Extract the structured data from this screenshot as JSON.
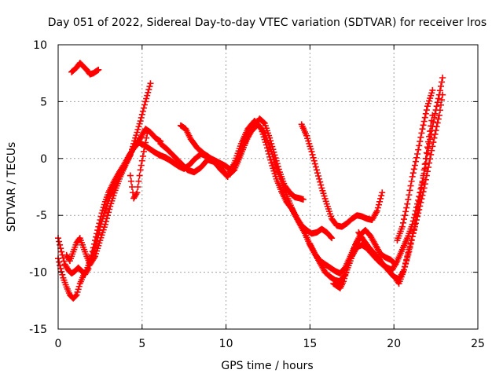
{
  "chart_data": {
    "type": "scatter",
    "title": "Day 051 of 2022, Sidereal Day-to-day VTEC variation (SDTVAR) for receiver lros",
    "xlabel": "GPS time / hours",
    "ylabel": "SDTVAR / TECUs",
    "xlim": [
      0,
      25
    ],
    "ylim": [
      -15,
      10
    ],
    "xticks": [
      0,
      5,
      10,
      15,
      20,
      25
    ],
    "yticks": [
      -15,
      -10,
      -5,
      0,
      5,
      10
    ],
    "x_tick_labels": [
      "0",
      "5",
      "10",
      "15",
      "20",
      "25"
    ],
    "y_tick_labels": [
      "-15",
      "-10",
      "-5",
      "0",
      "5",
      "10"
    ],
    "grid": true,
    "marker": "+",
    "color": "#ff0000",
    "series": [
      {
        "x": [
          0.8,
          1.1,
          1.3,
          1.5,
          1.7,
          1.9,
          2.1,
          2.3,
          2.4
        ],
        "y": [
          7.6,
          8.0,
          8.4,
          8.1,
          7.8,
          7.4,
          7.5,
          7.7,
          7.8
        ]
      },
      {
        "x": [
          0.0,
          0.1,
          0.3,
          0.5,
          0.7,
          0.9,
          1.1,
          1.3,
          1.5,
          1.7,
          1.9,
          2.1,
          2.3,
          2.5,
          2.8,
          3.1,
          3.4,
          3.7,
          4.0,
          4.3,
          4.6,
          4.9,
          5.2,
          5.5
        ],
        "y": [
          -8.8,
          -9.4,
          -10.5,
          -11.3,
          -12.0,
          -12.3,
          -12.0,
          -11.0,
          -10.3,
          -9.8,
          -9.0,
          -8.3,
          -7.3,
          -6.0,
          -4.6,
          -3.3,
          -2.3,
          -1.3,
          -0.6,
          0.3,
          1.8,
          3.3,
          5.0,
          6.6
        ]
      },
      {
        "x": [
          0.0,
          0.2,
          0.4,
          0.6,
          0.8,
          1.0,
          1.2,
          1.4,
          1.6,
          1.8,
          2.0,
          2.2,
          2.4,
          2.6,
          2.8,
          3.0,
          3.3,
          3.6,
          3.9,
          4.2,
          4.5,
          4.8,
          5.1,
          5.4,
          5.8,
          6.2,
          6.6,
          7.0,
          7.4
        ],
        "y": [
          -7.0,
          -8.2,
          -9.3,
          -9.8,
          -10.1,
          -9.9,
          -9.6,
          -9.9,
          -10.2,
          -9.7,
          -8.5,
          -7.2,
          -6.0,
          -4.8,
          -3.8,
          -3.0,
          -2.1,
          -1.3,
          -0.6,
          0.2,
          0.9,
          1.4,
          1.2,
          0.9,
          0.5,
          0.2,
          -0.1,
          -0.5,
          -0.8
        ]
      },
      {
        "x": [
          0.5,
          0.7,
          0.9,
          1.1,
          1.3,
          1.5,
          1.7,
          1.9,
          2.2,
          2.5,
          2.8,
          3.1,
          3.4,
          3.7,
          4.0,
          4.3,
          4.6,
          4.9,
          5.2,
          5.5,
          5.8,
          6.1
        ],
        "y": [
          -8.5,
          -9.0,
          -8.2,
          -7.4,
          -7.0,
          -7.8,
          -8.6,
          -9.3,
          -8.6,
          -7.2,
          -5.8,
          -4.2,
          -2.8,
          -1.6,
          -0.6,
          0.4,
          1.2,
          1.8,
          2.6,
          2.3,
          1.8,
          1.5
        ]
      },
      {
        "x": [
          4.3,
          4.5,
          4.7,
          4.9,
          5.1,
          5.3
        ],
        "y": [
          -1.5,
          -3.5,
          -3.0,
          -1.0,
          0.6,
          2.2
        ]
      },
      {
        "x": [
          6.0,
          6.4,
          6.8,
          7.2,
          7.5,
          7.8,
          8.1,
          8.5,
          8.9,
          9.3,
          9.7,
          10.1,
          10.5,
          10.9,
          11.3,
          11.7,
          12.0,
          12.3,
          12.6,
          12.9,
          13.2,
          13.5,
          13.8,
          14.1,
          14.4,
          14.6
        ],
        "y": [
          0.3,
          0.1,
          -0.3,
          -0.7,
          -0.9,
          -0.6,
          -0.1,
          0.4,
          0.2,
          -0.3,
          -0.9,
          -1.5,
          -1.0,
          0.4,
          1.9,
          2.9,
          3.5,
          3.1,
          1.8,
          0.3,
          -1.2,
          -2.4,
          -3.0,
          -3.4,
          -3.5,
          -3.6
        ]
      },
      {
        "x": [
          6.1,
          6.5,
          6.9,
          7.3,
          7.7,
          8.1,
          8.5,
          8.9,
          9.3,
          9.7,
          10.1,
          10.5,
          10.9,
          11.3,
          11.7,
          12.1,
          12.4,
          12.7,
          13.0,
          13.3,
          13.6,
          13.9,
          14.2,
          14.5,
          14.8,
          15.1,
          15.4,
          15.7,
          16.0,
          16.3
        ],
        "y": [
          1.3,
          0.8,
          0.2,
          -0.4,
          -1.0,
          -1.2,
          -0.8,
          -0.1,
          -0.3,
          -1.0,
          -1.6,
          -0.4,
          1.3,
          2.6,
          3.3,
          2.6,
          1.2,
          -0.4,
          -1.8,
          -2.9,
          -3.8,
          -4.4,
          -5.2,
          -5.9,
          -6.3,
          -6.6,
          -6.5,
          -6.2,
          -6.5,
          -7.0
        ]
      },
      {
        "x": [
          7.3,
          7.6,
          7.9,
          8.3,
          8.7,
          9.1,
          9.5,
          9.9,
          10.3,
          10.7,
          11.1,
          11.5,
          11.9,
          12.3,
          12.7,
          13.1,
          13.5,
          13.9,
          14.3,
          14.7,
          15.0,
          15.3,
          15.6,
          15.9,
          16.2,
          16.5,
          16.8,
          17.1,
          17.4,
          17.7,
          18.0
        ],
        "y": [
          2.9,
          2.6,
          1.7,
          0.9,
          0.4,
          0.0,
          -0.3,
          -0.6,
          -1.0,
          -0.1,
          1.3,
          2.4,
          3.0,
          2.2,
          0.6,
          -1.2,
          -2.8,
          -4.3,
          -5.5,
          -6.6,
          -7.6,
          -8.4,
          -9.0,
          -9.3,
          -9.6,
          -9.9,
          -10.1,
          -9.6,
          -8.6,
          -7.6,
          -6.9
        ]
      },
      {
        "x": [
          14.5,
          14.8,
          15.1,
          15.4,
          15.7,
          16.0,
          16.3,
          16.6,
          16.9,
          17.2,
          17.5,
          17.8,
          18.1,
          18.4,
          18.7,
          19.0,
          19.3
        ],
        "y": [
          3.0,
          2.0,
          0.6,
          -1.0,
          -2.6,
          -4.0,
          -5.3,
          -5.9,
          -6.0,
          -5.7,
          -5.3,
          -5.0,
          -5.1,
          -5.3,
          -5.4,
          -4.6,
          -3.0
        ]
      },
      {
        "x": [
          15.0,
          15.3,
          15.6,
          15.9,
          16.2,
          16.5,
          16.8,
          17.1,
          17.4,
          17.7,
          18.0,
          18.3,
          18.6,
          18.9,
          19.2,
          19.5,
          19.8,
          20.1
        ],
        "y": [
          -7.5,
          -8.4,
          -9.2,
          -10.0,
          -10.4,
          -10.7,
          -10.8,
          -10.2,
          -9.0,
          -7.6,
          -6.7,
          -6.3,
          -6.8,
          -7.6,
          -8.4,
          -8.7,
          -8.9,
          -9.3
        ]
      },
      {
        "x": [
          16.4,
          16.6,
          16.8,
          17.0,
          17.2,
          17.5,
          17.8,
          18.1,
          18.4,
          18.7,
          19.0,
          19.3,
          19.6,
          19.9,
          20.2,
          20.5,
          20.8,
          21.1,
          21.4,
          21.7,
          22.0,
          22.3
        ],
        "y": [
          -11.0,
          -11.2,
          -11.4,
          -10.8,
          -9.8,
          -8.6,
          -7.8,
          -7.6,
          -7.9,
          -8.4,
          -8.9,
          -9.3,
          -9.6,
          -9.8,
          -9.0,
          -8.0,
          -7.0,
          -5.8,
          -4.0,
          -2.0,
          1.0,
          3.8
        ]
      },
      {
        "x": [
          17.9,
          18.2,
          18.5,
          18.8,
          19.1,
          19.4,
          19.7,
          20.0,
          20.3,
          20.6,
          20.9,
          21.2,
          21.5,
          21.8,
          22.1,
          22.4,
          22.7,
          22.9
        ],
        "y": [
          -6.5,
          -7.2,
          -7.8,
          -8.3,
          -8.8,
          -9.4,
          -9.9,
          -10.4,
          -10.6,
          -9.8,
          -8.2,
          -6.2,
          -3.8,
          -1.3,
          1.3,
          3.6,
          5.6,
          7.1
        ]
      },
      {
        "x": [
          20.1,
          20.3,
          20.6,
          20.9,
          21.2,
          21.5,
          21.8,
          22.1,
          22.4,
          22.7,
          22.9
        ],
        "y": [
          -10.5,
          -11.0,
          -9.8,
          -8.0,
          -6.3,
          -4.5,
          -2.6,
          -0.4,
          1.8,
          3.8,
          5.6
        ]
      },
      {
        "x": [
          20.2,
          20.5,
          20.8,
          21.1,
          21.4,
          21.7,
          22.0,
          22.3
        ],
        "y": [
          -7.2,
          -6.0,
          -4.0,
          -1.6,
          0.4,
          2.6,
          4.6,
          6.0
        ]
      }
    ]
  }
}
